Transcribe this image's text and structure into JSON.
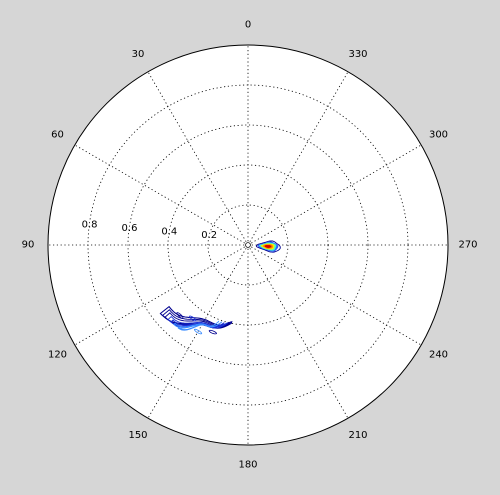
{
  "figure": {
    "background_color": "#d6d6d6",
    "plot_face_color": "#ffffff",
    "axis_color": "#000000"
  },
  "chart_data": {
    "type": "polar contour",
    "title": "",
    "angular_axis": {
      "unit": "degrees",
      "zero_location": "top",
      "direction": "counterclockwise",
      "tick_values": [
        0,
        30,
        60,
        90,
        120,
        150,
        180,
        210,
        240,
        270,
        300,
        330
      ],
      "tick_labels": [
        "0",
        "30",
        "60",
        "90",
        "120",
        "150",
        "180",
        "210",
        "240",
        "270",
        "300",
        "330"
      ]
    },
    "radial_axis": {
      "range": [
        0,
        1
      ],
      "grid_values": [
        0.2,
        0.4,
        0.6,
        0.8,
        1.0
      ],
      "tick_values": [
        0.2,
        0.4,
        0.6,
        0.8
      ],
      "tick_labels": [
        "0.2",
        "0.4",
        "0.6",
        "0.8"
      ],
      "tick_label_angle": 85
    },
    "grid": "dotted",
    "colormap": "jet",
    "contour_features": [
      {
        "angle_range": [
          250,
          280
        ],
        "radius_range": [
          0.07,
          0.16
        ],
        "peak": {
          "angle": 266,
          "radius": 0.1
        },
        "levels": [
          {
            "level": 1,
            "color": "#00008f",
            "filled": false
          },
          {
            "level": 2,
            "color": "#2a5fff",
            "filled": true
          },
          {
            "level": 3,
            "color": "#42ffc8",
            "filled": true
          },
          {
            "level": 4,
            "color": "#ffea00",
            "filled": true
          },
          {
            "level": 5,
            "color": "#ff7a00",
            "filled": true
          },
          {
            "level": 6,
            "color": "#d20000",
            "filled": true
          }
        ]
      },
      {
        "angle_range": [
          128,
          168
        ],
        "radius_range": [
          0.38,
          0.57
        ],
        "levels": [
          {
            "level": 1,
            "color": "#00008f"
          },
          {
            "level": 2,
            "color": "#1b33d6"
          },
          {
            "level": 3,
            "color": "#3b8cff"
          }
        ]
      }
    ]
  }
}
